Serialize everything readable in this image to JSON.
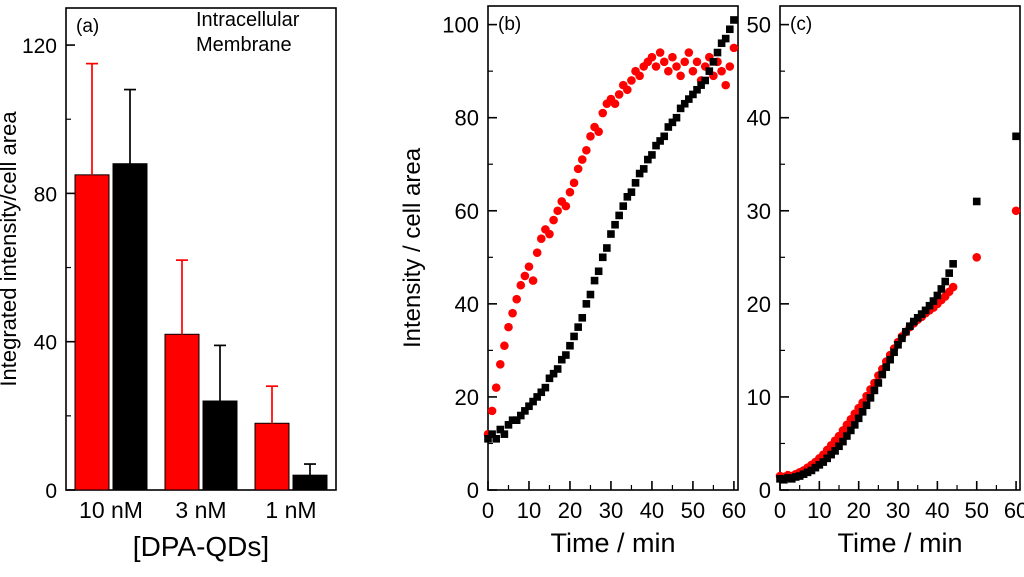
{
  "figure": {
    "background": "#ffffff",
    "panel_labels": [
      "(a)",
      "(b)",
      "(c)"
    ]
  },
  "chart_data": [
    {
      "id": "a",
      "type": "bar",
      "panel_label": "(a)",
      "xlabel": "[DPA-QDs]",
      "ylabel": "Integrated intensity/cell area",
      "categories": [
        "10 nM",
        "3 nM",
        "1 nM"
      ],
      "ylim": [
        0,
        130
      ],
      "yticks": [
        0,
        40,
        80,
        120
      ],
      "yminor_step": 20,
      "grid": false,
      "legend": {
        "position": "top-right",
        "entries": [
          {
            "label": "Intracellular",
            "color": "#000000"
          },
          {
            "label": "Membrane",
            "color": "#ff0000"
          }
        ]
      },
      "series": [
        {
          "name": "Membrane",
          "color": "#ff0000",
          "values": [
            85,
            42,
            18
          ],
          "errors_up": [
            30,
            20,
            10
          ]
        },
        {
          "name": "Intracellular",
          "color": "#000000",
          "values": [
            88,
            24,
            4
          ],
          "errors_up": [
            20,
            15,
            3
          ]
        }
      ]
    },
    {
      "id": "b",
      "type": "scatter",
      "panel_label": "(b)",
      "xlabel": "Time / min",
      "ylabel": "Intensity / cell area",
      "xlim": [
        0,
        61
      ],
      "ylim": [
        0,
        104
      ],
      "xticks": [
        0,
        10,
        20,
        30,
        40,
        50,
        60
      ],
      "yticks": [
        0,
        20,
        40,
        60,
        80,
        100
      ],
      "xminor_step": 5,
      "yminor_step": 10,
      "grid": false,
      "series": [
        {
          "name": "Membrane",
          "marker": "circle",
          "color": "#ff0000",
          "x": [
            0,
            1,
            2,
            3,
            4,
            5,
            6,
            7,
            8,
            9,
            10,
            11,
            12,
            13,
            14,
            15,
            16,
            17,
            18,
            19,
            20,
            21,
            22,
            23,
            24,
            25,
            26,
            27,
            28,
            29,
            30,
            31,
            32,
            33,
            34,
            35,
            36,
            37,
            38,
            39,
            40,
            41,
            42,
            43,
            44,
            45,
            46,
            47,
            48,
            49,
            50,
            51,
            52,
            53,
            54,
            55,
            56,
            57,
            58,
            59,
            60
          ],
          "y": [
            12,
            17,
            22,
            27,
            31,
            35,
            38,
            41,
            44,
            46,
            48,
            45,
            51,
            54,
            56,
            55,
            58,
            60,
            62,
            61,
            64,
            66,
            69,
            71,
            73,
            76,
            78,
            77,
            81,
            83,
            84,
            83,
            85,
            87,
            86,
            88,
            90,
            89,
            91,
            92,
            93,
            91,
            94,
            92,
            90,
            93,
            91,
            89,
            92,
            94,
            90,
            92,
            88,
            91,
            93,
            89,
            92,
            90,
            87,
            91,
            95
          ]
        },
        {
          "name": "Intracellular",
          "marker": "square",
          "color": "#000000",
          "x": [
            0,
            1,
            2,
            3,
            4,
            5,
            6,
            7,
            8,
            9,
            10,
            11,
            12,
            13,
            14,
            15,
            16,
            17,
            18,
            19,
            20,
            21,
            22,
            23,
            24,
            25,
            26,
            27,
            28,
            29,
            30,
            31,
            32,
            33,
            34,
            35,
            36,
            37,
            38,
            39,
            40,
            41,
            42,
            43,
            44,
            45,
            46,
            47,
            48,
            49,
            50,
            51,
            52,
            53,
            54,
            55,
            56,
            57,
            58,
            59,
            60
          ],
          "y": [
            11,
            12,
            11,
            13,
            12,
            14,
            15,
            15,
            16,
            17,
            18,
            19,
            20,
            21,
            22,
            24,
            25,
            26,
            28,
            29,
            31,
            33,
            35,
            37,
            40,
            42,
            45,
            47,
            50,
            52,
            55,
            57,
            59,
            61,
            63,
            64,
            66,
            68,
            69,
            71,
            72,
            74,
            75,
            76,
            78,
            79,
            80,
            82,
            83,
            84,
            85,
            86,
            87,
            88,
            90,
            92,
            94,
            96,
            97,
            99,
            101
          ]
        }
      ]
    },
    {
      "id": "c",
      "type": "scatter",
      "panel_label": "(c)",
      "xlabel": "Time / min",
      "ylabel": "",
      "xlim": [
        0,
        61
      ],
      "ylim": [
        0,
        52
      ],
      "xticks": [
        0,
        10,
        20,
        30,
        40,
        50,
        60
      ],
      "yticks": [
        0,
        10,
        20,
        30,
        40,
        50
      ],
      "xminor_step": 5,
      "yminor_step": 5,
      "grid": false,
      "series": [
        {
          "name": "Membrane",
          "marker": "circle",
          "color": "#ff0000",
          "x": [
            0,
            1,
            2,
            3,
            4,
            5,
            6,
            7,
            8,
            9,
            10,
            11,
            12,
            13,
            14,
            15,
            16,
            17,
            18,
            19,
            20,
            21,
            22,
            23,
            24,
            25,
            26,
            27,
            28,
            29,
            30,
            31,
            32,
            33,
            34,
            35,
            36,
            37,
            38,
            39,
            40,
            41,
            42,
            43,
            44,
            50,
            60
          ],
          "y": [
            1.5,
            1.4,
            1.6,
            1.5,
            1.7,
            1.9,
            2.1,
            2.4,
            2.7,
            3.0,
            3.4,
            3.8,
            4.3,
            4.8,
            5.3,
            5.8,
            6.4,
            7.0,
            7.6,
            8.2,
            8.8,
            9.4,
            10.1,
            10.8,
            11.5,
            12.3,
            13.0,
            13.8,
            14.5,
            15.2,
            15.9,
            16.5,
            17.0,
            17.5,
            17.9,
            18.3,
            18.6,
            19.0,
            19.3,
            19.6,
            20.0,
            20.4,
            20.8,
            21.3,
            21.8,
            25,
            30
          ]
        },
        {
          "name": "Intracellular",
          "marker": "square",
          "color": "#000000",
          "x": [
            0,
            1,
            2,
            3,
            4,
            5,
            6,
            7,
            8,
            9,
            10,
            11,
            12,
            13,
            14,
            15,
            16,
            17,
            18,
            19,
            20,
            21,
            22,
            23,
            24,
            25,
            26,
            27,
            28,
            29,
            30,
            31,
            32,
            33,
            34,
            35,
            36,
            37,
            38,
            39,
            40,
            41,
            42,
            43,
            44,
            50,
            60
          ],
          "y": [
            1.2,
            1.1,
            1.3,
            1.2,
            1.4,
            1.5,
            1.7,
            1.9,
            2.1,
            2.4,
            2.7,
            3.0,
            3.4,
            3.8,
            4.2,
            4.7,
            5.2,
            5.8,
            6.4,
            7.0,
            7.7,
            8.4,
            9.1,
            9.9,
            10.7,
            11.5,
            12.4,
            13.2,
            14.0,
            14.8,
            15.6,
            16.3,
            17.0,
            17.6,
            18.1,
            18.5,
            18.9,
            19.3,
            19.8,
            20.3,
            20.9,
            21.6,
            22.4,
            23.3,
            24.3,
            31,
            38
          ]
        }
      ]
    }
  ]
}
